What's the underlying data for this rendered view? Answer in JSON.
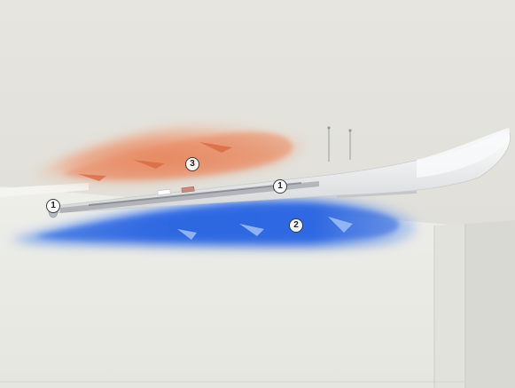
{
  "diagram": {
    "markers": [
      {
        "id": "1a",
        "label": "1"
      },
      {
        "id": "1b",
        "label": "1"
      },
      {
        "id": "2",
        "label": "2"
      },
      {
        "id": "3",
        "label": "3"
      }
    ]
  },
  "colors": {
    "wall": "#ecebe6",
    "ceiling": "#e3e3dd",
    "warm_air": "#e8845e",
    "cool_air": "#2f6fe6",
    "unit_body": "#ffffff"
  },
  "icons": [
    "arrow-icon"
  ]
}
